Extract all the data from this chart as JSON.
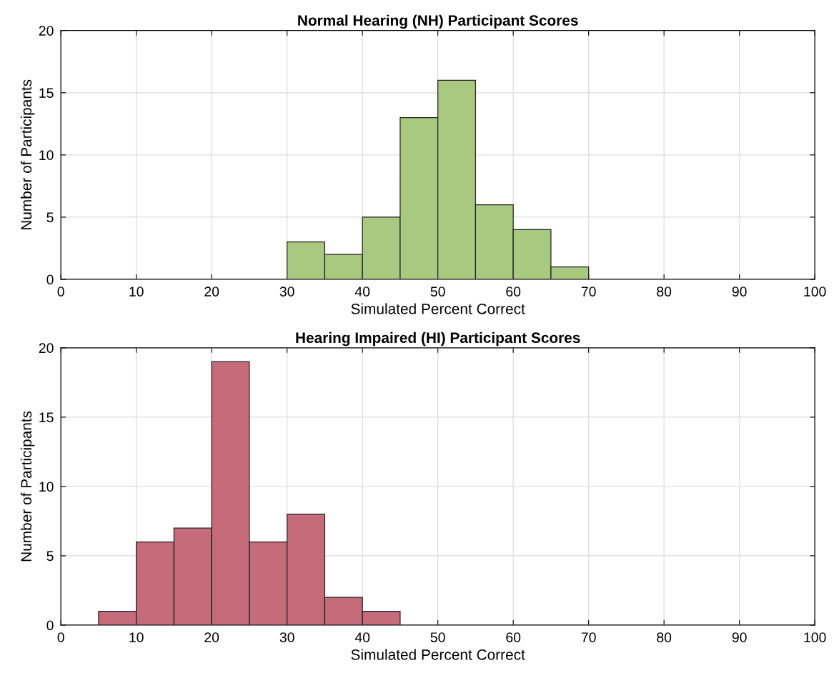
{
  "chart_data": [
    {
      "type": "histogram",
      "title": "Normal Hearing (NH) Participant Scores",
      "xlabel": "Simulated Percent Correct",
      "ylabel": "Number of Participants",
      "bins": [
        30,
        35,
        40,
        45,
        50,
        55,
        60,
        65,
        70
      ],
      "values": [
        3,
        2,
        5,
        13,
        16,
        6,
        4,
        1
      ],
      "color": "#a8c97f",
      "xlim": [
        0,
        100
      ],
      "xticks": [
        0,
        10,
        20,
        30,
        40,
        50,
        60,
        70,
        80,
        90,
        100
      ],
      "ylim": [
        0,
        20
      ],
      "yticks": [
        0,
        5,
        10,
        15,
        20
      ],
      "grid": true
    },
    {
      "type": "histogram",
      "title": "Hearing Impaired (HI) Participant Scores",
      "xlabel": "Simulated Percent Correct",
      "ylabel": "Number of Participants",
      "bins": [
        5,
        10,
        15,
        20,
        25,
        30,
        35,
        40,
        45
      ],
      "values": [
        1,
        6,
        7,
        19,
        6,
        8,
        2,
        1
      ],
      "color": "#c56b7a",
      "xlim": [
        0,
        100
      ],
      "xticks": [
        0,
        10,
        20,
        30,
        40,
        50,
        60,
        70,
        80,
        90,
        100
      ],
      "ylim": [
        0,
        20
      ],
      "yticks": [
        0,
        5,
        10,
        15,
        20
      ],
      "grid": true
    }
  ]
}
